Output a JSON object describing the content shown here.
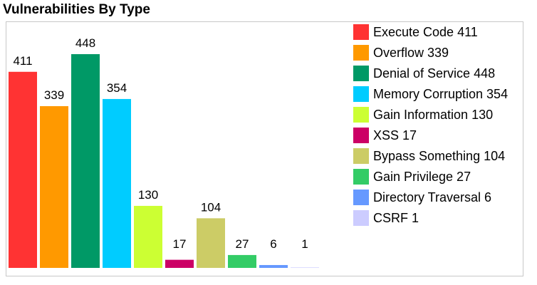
{
  "title": "Vulnerabilities By Type",
  "chart_data": {
    "type": "bar",
    "categories": [
      "Execute Code",
      "Overflow",
      "Denial of Service",
      "Memory Corruption",
      "Gain Information",
      "XSS",
      "Bypass Something",
      "Gain Privilege",
      "Directory Traversal",
      "CSRF"
    ],
    "values": [
      411,
      339,
      448,
      354,
      130,
      17,
      104,
      27,
      6,
      1
    ],
    "colors": [
      "#ff3333",
      "#ff9900",
      "#009966",
      "#00ccff",
      "#ccff33",
      "#cc0066",
      "#cccc66",
      "#33cc66",
      "#6699ff",
      "#ccccff"
    ],
    "legend_labels": [
      "Execute Code 411",
      "Overflow 339",
      "Denial of Service 448",
      "Memory Corruption 354",
      "Gain Information 130",
      "XSS 17",
      "Bypass Something 104",
      "Gain Privilege 27",
      "Directory Traversal 6",
      "CSRF 1"
    ],
    "data_labels": [
      "411",
      "339",
      "448",
      "354",
      "130",
      "17",
      "104",
      "27",
      "6",
      "1"
    ],
    "ylim": [
      0,
      448
    ],
    "grid": false,
    "legend_position": "right"
  }
}
